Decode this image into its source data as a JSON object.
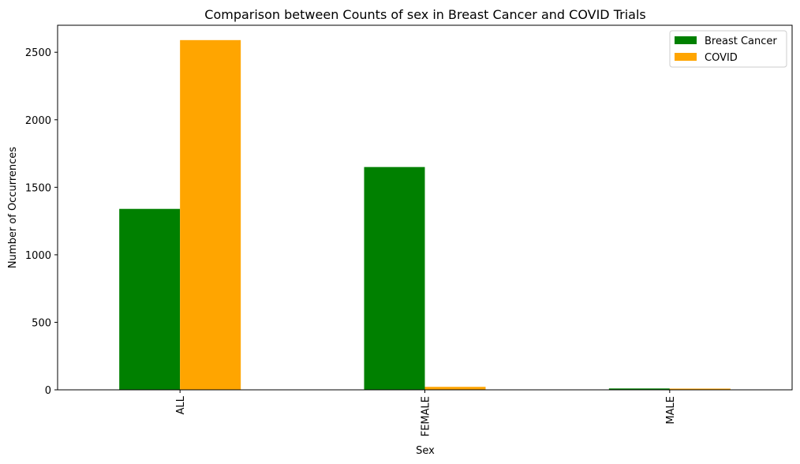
{
  "chart_data": {
    "type": "bar",
    "title": "Comparison between Counts of sex in Breast Cancer and COVID Trials",
    "xlabel": "Sex",
    "ylabel": "Number of Occurrences",
    "categories": [
      "ALL",
      "FEMALE",
      "MALE"
    ],
    "series": [
      {
        "name": "Breast Cancer",
        "color": "#008000",
        "values": [
          1340,
          1650,
          10
        ]
      },
      {
        "name": "COVID",
        "color": "#FFA500",
        "values": [
          2590,
          22,
          9
        ]
      }
    ],
    "ylim": [
      0,
      2700
    ],
    "yticks": [
      0,
      500,
      1000,
      1500,
      2000,
      2500
    ],
    "grid": false,
    "legend_position": "top-right",
    "x_tick_rotation": "vertical"
  }
}
